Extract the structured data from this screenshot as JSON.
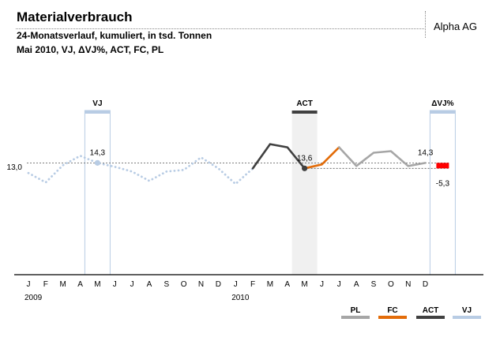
{
  "header": {
    "title": "Materialverbrauch",
    "subtitle": "24-Monatsverlauf, kumuliert, in tsd. Tonnen",
    "subtitle2": "Mai 2010, VJ, ΔVJ%, ACT, FC, PL",
    "company": "Alpha AG"
  },
  "chart_data": {
    "type": "line",
    "title": "Materialverbrauch",
    "months": [
      "J",
      "F",
      "M",
      "A",
      "M",
      "J",
      "J",
      "A",
      "S",
      "O",
      "N",
      "D",
      "J",
      "F",
      "M",
      "A",
      "M",
      "J",
      "J",
      "A",
      "S",
      "O",
      "N",
      "D"
    ],
    "years": [
      {
        "label": "2009",
        "index": 0
      },
      {
        "label": "2010",
        "index": 12
      }
    ],
    "ylim": [
      0,
      21
    ],
    "series": [
      {
        "name": "VJ",
        "color": "#b8cce4",
        "style": "dotted",
        "start": 0,
        "values": [
          13.0,
          11.8,
          14.0,
          15.2,
          14.3,
          13.8,
          13.2,
          12.0,
          13.2,
          13.4,
          15.0,
          13.6,
          11.6,
          13.6
        ]
      },
      {
        "name": "ACT",
        "color": "#404040",
        "style": "solid",
        "start": 13,
        "values": [
          13.6,
          16.7,
          16.3,
          13.6
        ]
      },
      {
        "name": "FC",
        "color": "#e36c09",
        "style": "solid",
        "start": 16,
        "values": [
          13.6,
          14.1,
          16.3
        ]
      },
      {
        "name": "PL",
        "color": "#a6a6a6",
        "style": "solid",
        "start": 18,
        "values": [
          16.3,
          13.9,
          15.6,
          15.8,
          13.9,
          14.3
        ]
      }
    ],
    "highlights": [
      {
        "label": "VJ",
        "index": 4,
        "type": "outline",
        "color": "#b8cce4"
      },
      {
        "label": "ACT",
        "index": 16,
        "type": "filled",
        "color": "#404040"
      },
      {
        "label": "ΔVJ%",
        "index": 24,
        "type": "outline",
        "color": "#b8cce4"
      }
    ],
    "annotations": [
      {
        "series": "VJ",
        "index": 0,
        "text": "13,0",
        "position": "left"
      },
      {
        "series": "VJ",
        "index": 4,
        "text": "14,3",
        "position": "above"
      },
      {
        "series": "ACT",
        "index": 16,
        "text": "13,6",
        "position": "above"
      },
      {
        "series": "PL",
        "index": 23,
        "text": "14,3",
        "position": "above"
      }
    ],
    "delta": {
      "value": -5.3,
      "text": "-5,3",
      "color": "#ff0000"
    },
    "legend": [
      {
        "label": "PL",
        "color": "#a6a6a6"
      },
      {
        "label": "FC",
        "color": "#e36c09"
      },
      {
        "label": "ACT",
        "color": "#404040"
      },
      {
        "label": "VJ",
        "color": "#b8cce4"
      }
    ]
  }
}
